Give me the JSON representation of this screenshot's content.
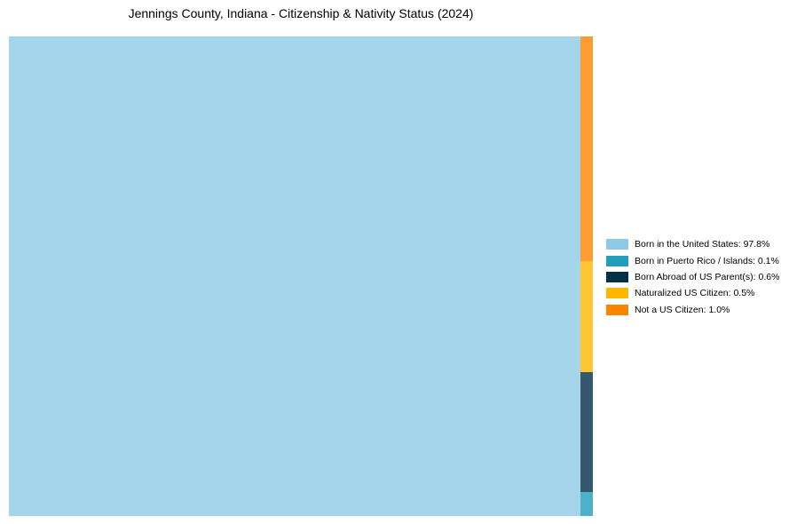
{
  "header": {
    "title": "Jennings County, Indiana - Citizenship & Nativity Status (2024)"
  },
  "chart_data": {
    "type": "treemap",
    "title": "Jennings County, Indiana - Citizenship & Nativity Status (2024)",
    "categories": [
      "Born in the United States",
      "Born in Puerto Rico / Islands",
      "Born Abroad of US Parent(s)",
      "Naturalized US Citizen",
      "Not a US Citizen"
    ],
    "values": [
      97.8,
      0.1,
      0.6,
      0.5,
      1.0
    ],
    "series": [
      {
        "label": "Born in the United States",
        "value": 97.8,
        "color": "#8ecae6",
        "legend_text": "Born in the United States: 97.8%"
      },
      {
        "label": "Born in Puerto Rico / Islands",
        "value": 0.1,
        "color": "#219ebc",
        "legend_text": "Born in Puerto Rico / Islands: 0.1%"
      },
      {
        "label": "Born Abroad of US Parent(s)",
        "value": 0.6,
        "color": "#023047",
        "legend_text": "Born Abroad of US Parent(s): 0.6%"
      },
      {
        "label": "Naturalized US Citizen",
        "value": 0.5,
        "color": "#ffb703",
        "legend_text": "Naturalized US Citizen: 0.5%"
      },
      {
        "label": "Not a US Citizen",
        "value": 1.0,
        "color": "#fb8500",
        "legend_text": "Not a US Citizen: 1.0%"
      }
    ],
    "fill_alpha": 0.8,
    "legend_position": "right",
    "grid": false,
    "axes_visible": false,
    "layout": {
      "main_category_index": 0,
      "strip_order_top_to_bottom": [
        4,
        3,
        2,
        1
      ],
      "strip_height_fractions": [
        0.4685,
        0.2315,
        0.25,
        0.05
      ]
    }
  }
}
